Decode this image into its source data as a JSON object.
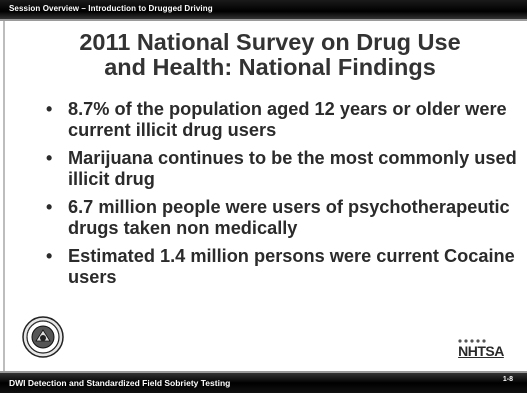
{
  "header": {
    "section_title": "Session  Overview – Introduction to Drugged Driving"
  },
  "slide": {
    "title_line1": "2011 National Survey on Drug Use",
    "title_line2": "and Health: National Findings",
    "bullets": [
      "8.7% of the population aged 12 years or older were current illicit drug users",
      "Marijuana continues to be the most commonly used illicit drug",
      "6.7 million people were users of psychotherapeutic drugs taken non medically",
      "Estimated 1.4 million persons were current Cocaine users"
    ]
  },
  "logos": {
    "left_seal": "seal-icon",
    "right_logo_text": "NHTSA"
  },
  "footer": {
    "course_title": "DWI Detection and Standardized Field Sobriety Testing",
    "page_number": "1-8"
  },
  "colors": {
    "bar": "#000000",
    "title_text": "#333333",
    "body_text": "#2b2b2b"
  }
}
